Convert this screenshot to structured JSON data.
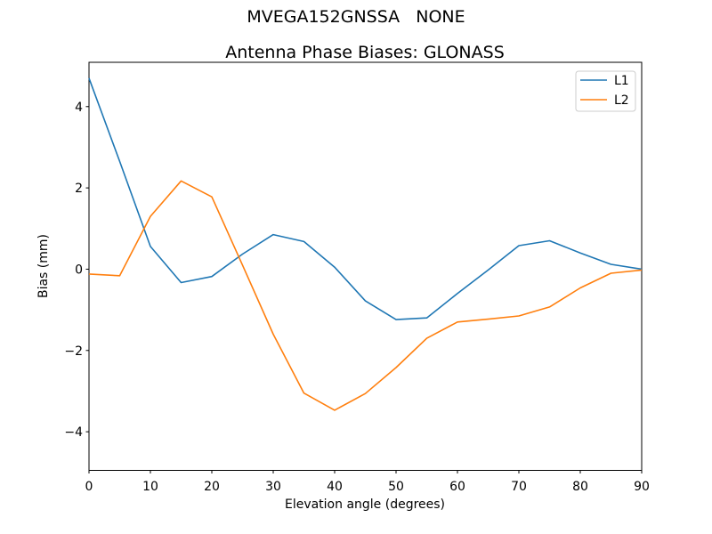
{
  "figure": {
    "suptitle": "MVEGA152GNSSA   NONE",
    "title": "Antenna Phase Biases: GLONASS"
  },
  "chart_data": {
    "type": "line",
    "title": "Antenna Phase Biases: GLONASS",
    "suptitle": "MVEGA152GNSSA   NONE",
    "xlabel": "Elevation angle (degrees)",
    "ylabel": "Bias (mm)",
    "xlim": [
      0,
      90
    ],
    "ylim": [
      -4.95,
      5.09
    ],
    "grid": false,
    "x": [
      0,
      5,
      10,
      15,
      20,
      25,
      30,
      35,
      40,
      45,
      50,
      55,
      60,
      65,
      70,
      75,
      80,
      85,
      90
    ],
    "series": [
      {
        "name": "L1",
        "color": "#1f77b4",
        "values": [
          4.7,
          2.65,
          0.56,
          -0.33,
          -0.18,
          0.37,
          0.85,
          0.68,
          0.05,
          -0.78,
          -1.24,
          -1.2,
          -0.6,
          -0.02,
          0.58,
          0.7,
          0.4,
          0.12,
          0.0
        ]
      },
      {
        "name": "L2",
        "color": "#ff7f0e",
        "values": [
          -0.12,
          -0.16,
          1.3,
          2.17,
          1.78,
          0.1,
          -1.6,
          -3.05,
          -3.47,
          -3.06,
          -2.42,
          -1.7,
          -1.3,
          -1.23,
          -1.15,
          -0.93,
          -0.46,
          -0.1,
          -0.02
        ]
      }
    ],
    "xticks": [
      0,
      10,
      20,
      30,
      40,
      50,
      60,
      70,
      80,
      90
    ],
    "xtick_labels": [
      "0",
      "10",
      "20",
      "30",
      "40",
      "50",
      "60",
      "70",
      "80",
      "90"
    ],
    "yticks": [
      4,
      2,
      0,
      -2,
      -4
    ],
    "ytick_labels": [
      "4",
      "2",
      "0",
      "−2",
      "−4"
    ],
    "legend": {
      "position": "upper right",
      "entries": [
        "L1",
        "L2"
      ]
    }
  }
}
